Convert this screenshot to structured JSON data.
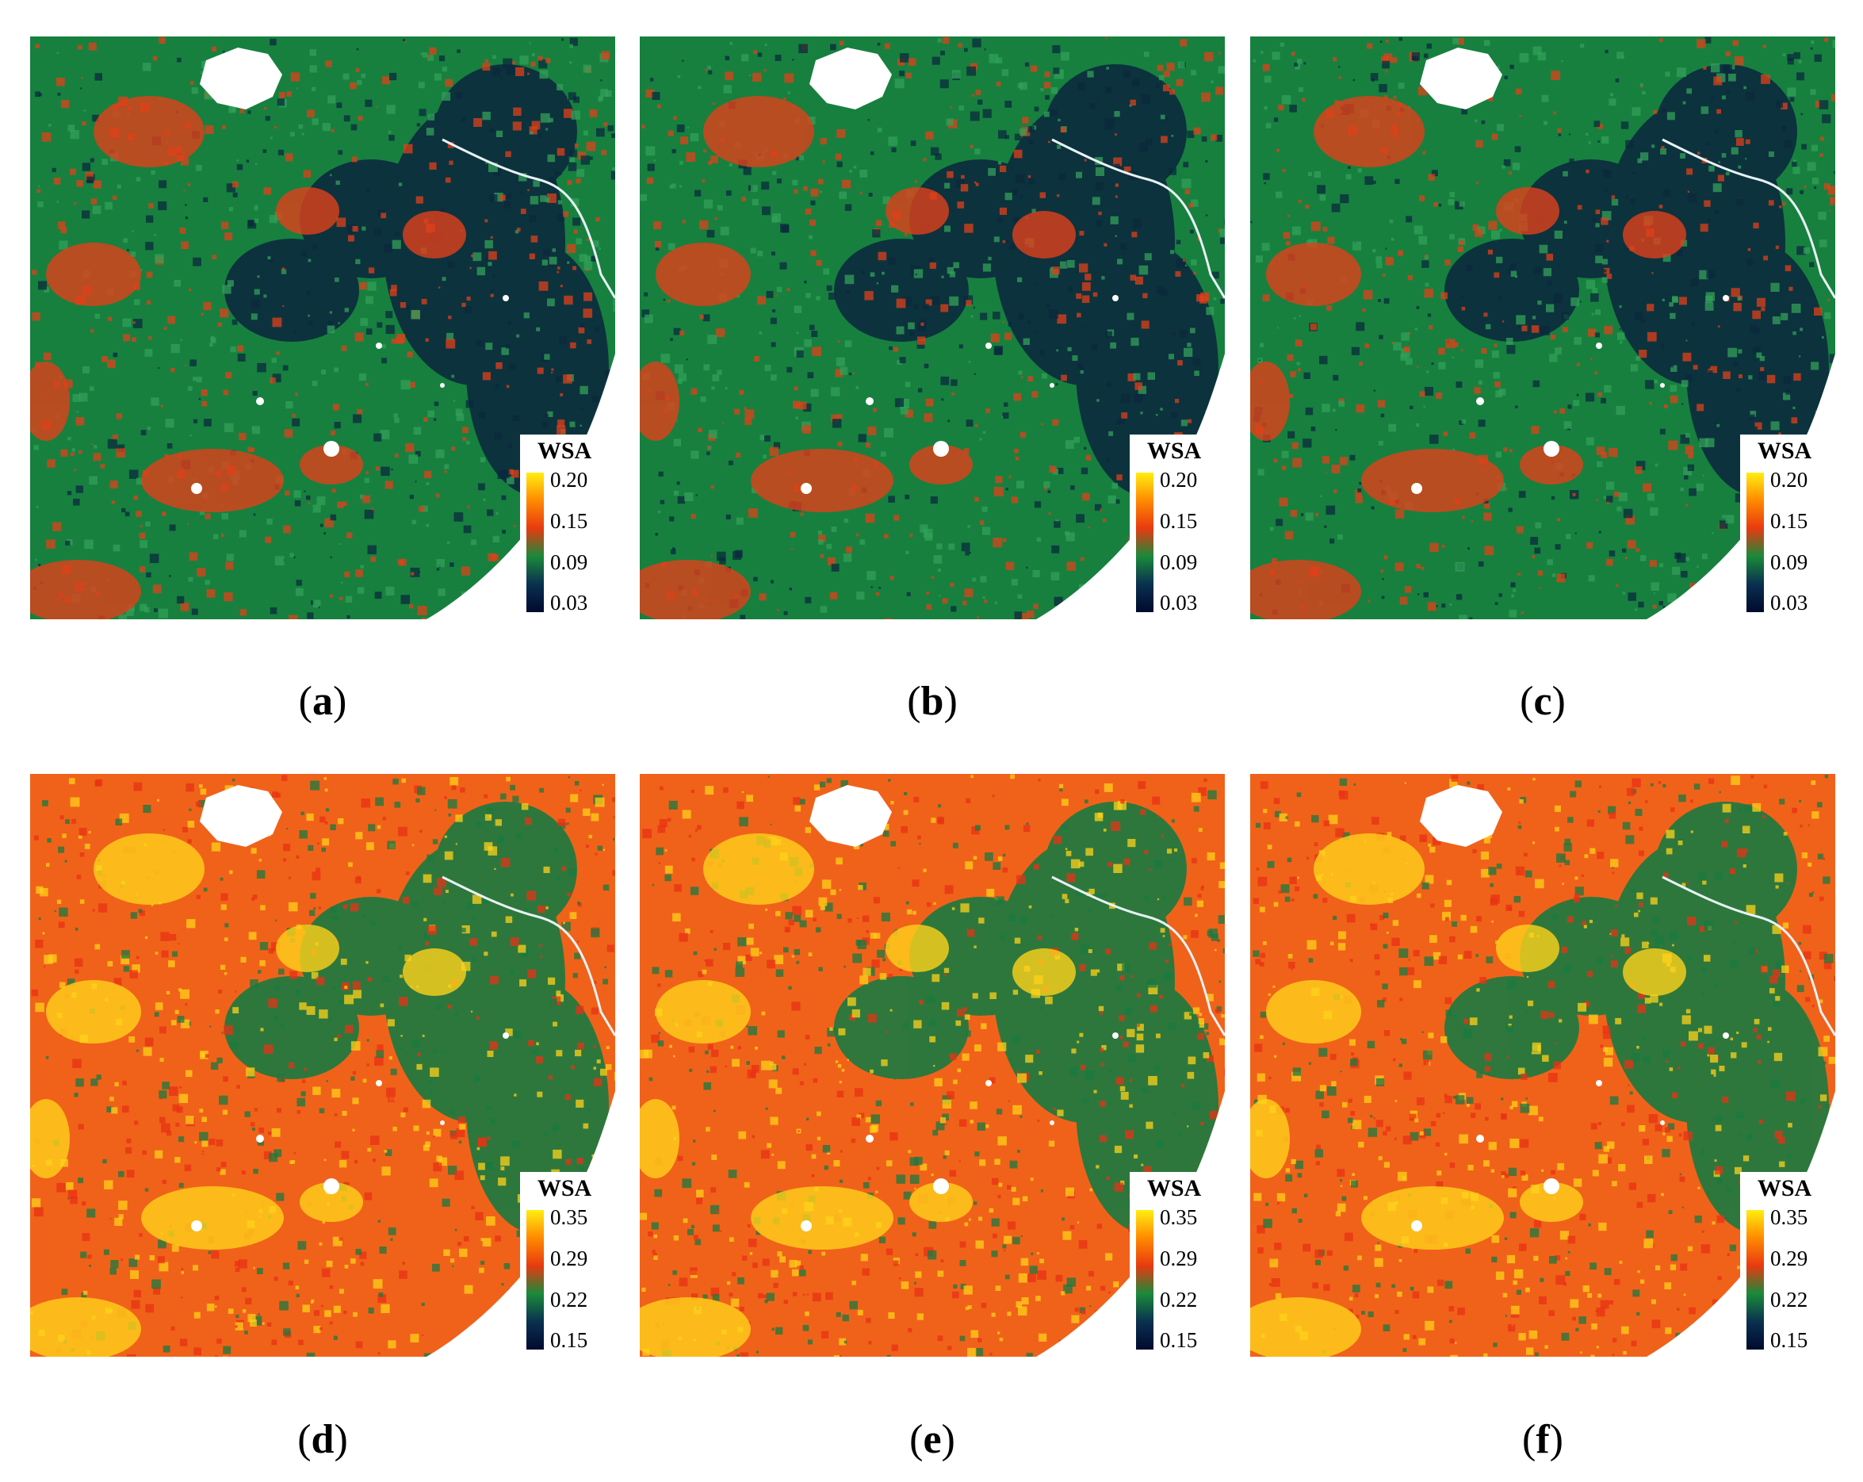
{
  "panels": [
    {
      "id": "a",
      "caption": "a",
      "palette": "low",
      "legend": {
        "title": "WSA",
        "ticks": [
          "0.20",
          "0.15",
          "0.09",
          "0.03"
        ]
      }
    },
    {
      "id": "b",
      "caption": "b",
      "palette": "low",
      "legend": {
        "title": "WSA",
        "ticks": [
          "0.20",
          "0.15",
          "0.09",
          "0.03"
        ]
      }
    },
    {
      "id": "c",
      "caption": "c",
      "palette": "low",
      "legend": {
        "title": "WSA",
        "ticks": [
          "0.20",
          "0.15",
          "0.09",
          "0.03"
        ]
      }
    },
    {
      "id": "d",
      "caption": "d",
      "palette": "high",
      "legend": {
        "title": "WSA",
        "ticks": [
          "0.35",
          "0.29",
          "0.22",
          "0.15"
        ]
      }
    },
    {
      "id": "e",
      "caption": "e",
      "palette": "high",
      "legend": {
        "title": "WSA",
        "ticks": [
          "0.35",
          "0.29",
          "0.22",
          "0.15"
        ]
      }
    },
    {
      "id": "f",
      "caption": "f",
      "palette": "high",
      "legend": {
        "title": "WSA",
        "ticks": [
          "0.35",
          "0.29",
          "0.22",
          "0.15"
        ]
      }
    }
  ],
  "colormap": [
    "#000a2e",
    "#0a3050",
    "#1a8a3a",
    "#e83a10",
    "#ff8a00",
    "#ffee10"
  ],
  "palettes": {
    "low": {
      "base": "#17803f",
      "dark": "#0b2a3d",
      "warm": "#e0401a",
      "light": "#33a05a"
    },
    "high": {
      "base": "#f0621a",
      "dark": "#1a7a40",
      "warm": "#ffd21a",
      "light": "#e83214"
    }
  }
}
